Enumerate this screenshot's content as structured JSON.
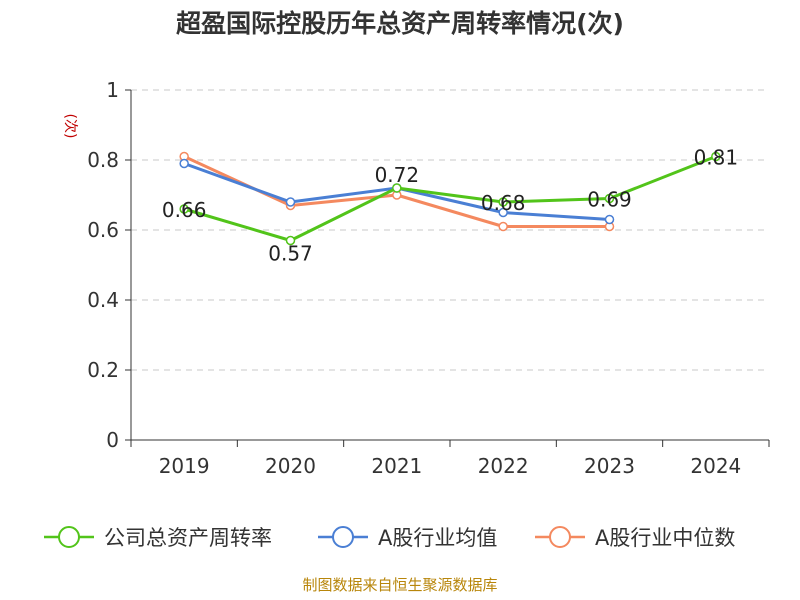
{
  "chart_data": {
    "type": "line",
    "title": "超盈国际控股历年总资产周转率情况(次)",
    "ylabel": "(次)",
    "xlabel": "",
    "categories": [
      "2019",
      "2020",
      "2021",
      "2022",
      "2023",
      "2024"
    ],
    "ylim": [
      0,
      1
    ],
    "yticks": [
      0,
      0.2,
      0.4,
      0.6,
      0.8,
      1
    ],
    "ytick_labels": [
      "0",
      "0.2",
      "0.4",
      "0.6",
      "0.8",
      "1"
    ],
    "grid": true,
    "legend_position": "bottom",
    "series": [
      {
        "name": "公司总资产周转率",
        "color": "#52c41a",
        "values": [
          0.66,
          0.57,
          0.72,
          0.68,
          0.69,
          0.81
        ],
        "labels": [
          "0.66",
          "0.57",
          "0.72",
          "0.68",
          "0.69",
          "0.81"
        ]
      },
      {
        "name": "A股行业均值",
        "color": "#4a7fd4",
        "values": [
          0.79,
          0.68,
          0.72,
          0.65,
          0.63,
          null
        ]
      },
      {
        "name": "A股行业中位数",
        "color": "#f4895f",
        "values": [
          0.81,
          0.67,
          0.7,
          0.61,
          0.61,
          null
        ]
      }
    ]
  },
  "footer": {
    "source": "制图数据来自恒生聚源数据库"
  }
}
